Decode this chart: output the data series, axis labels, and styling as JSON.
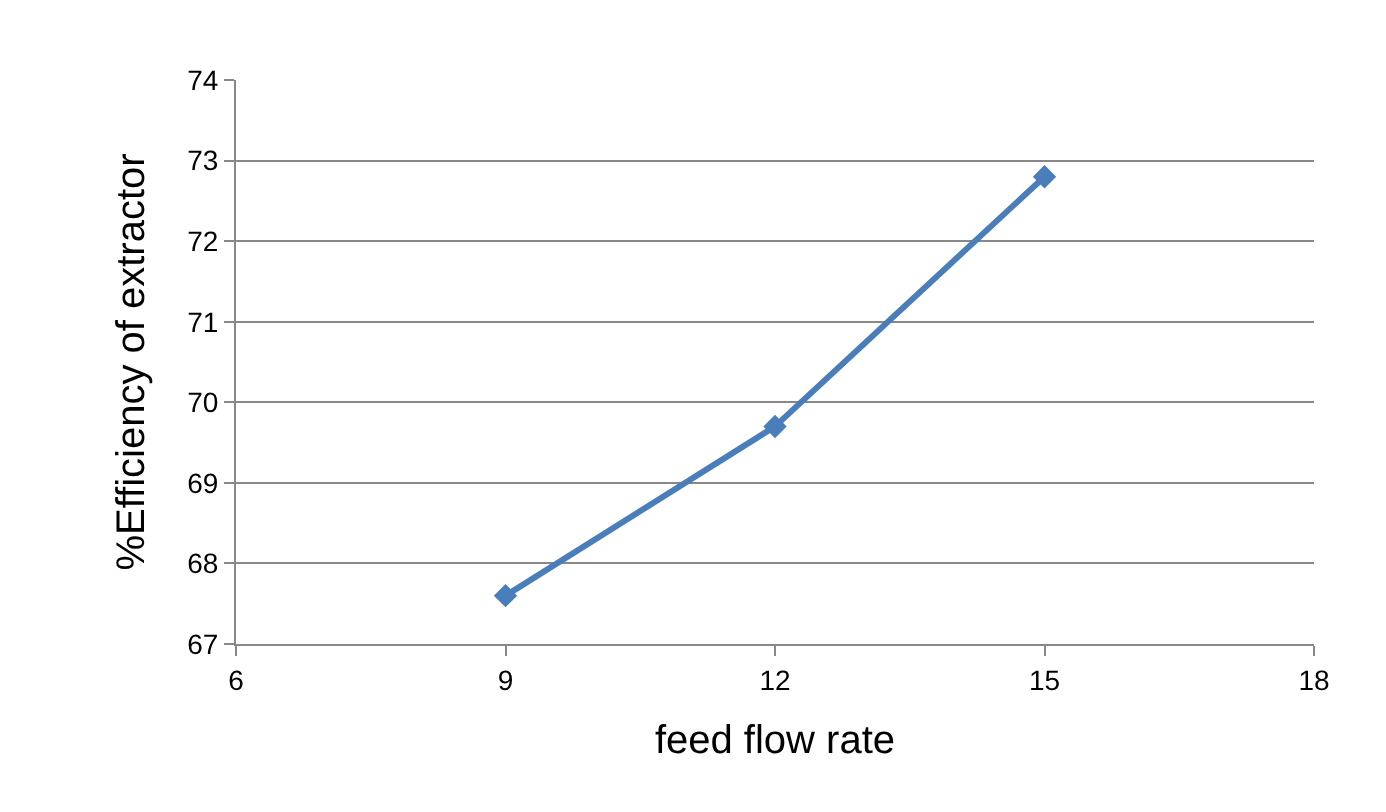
{
  "chart_data": {
    "type": "line",
    "xlabel": "feed flow rate",
    "ylabel": "%Efficiency of extractor",
    "x": [
      9,
      12,
      15
    ],
    "series": [
      {
        "color": "#4a7ebb",
        "values": [
          67.6,
          69.7,
          72.8
        ]
      }
    ],
    "xlim": [
      6,
      18
    ],
    "xticks": [
      6,
      9,
      12,
      15,
      18
    ],
    "ylim": [
      67,
      74
    ],
    "yticks": [
      67,
      68,
      69,
      70,
      71,
      72,
      73,
      74
    ],
    "grid": "y",
    "marker": "diamond",
    "line_style": "solid"
  }
}
